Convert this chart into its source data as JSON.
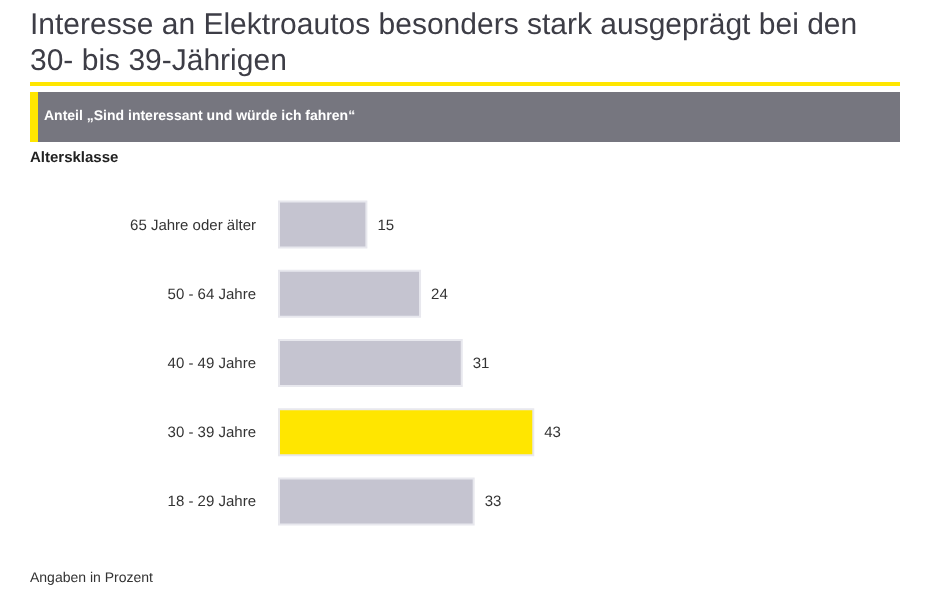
{
  "chart_data": {
    "type": "bar",
    "orientation": "horizontal",
    "title": "Interesse an Elektroautos besonders stark ausgeprägt bei den 30- bis 39-Jährigen",
    "subtitle": "Anteil „Sind interessant und würde ich fahren“",
    "ylabel": "Altersklasse",
    "categories": [
      "65 Jahre oder älter",
      "50 - 64 Jahre",
      "40 - 49 Jahre",
      "30 - 39 Jahre",
      "18 - 29 Jahre"
    ],
    "values": [
      15,
      24,
      31,
      43,
      33
    ],
    "colors": [
      "#c5c4d0",
      "#c5c4d0",
      "#c5c4d0",
      "#ffe600",
      "#c5c4d0"
    ],
    "data_labels": true,
    "grid": false,
    "annotations": [
      "Angaben in Prozent"
    ]
  }
}
